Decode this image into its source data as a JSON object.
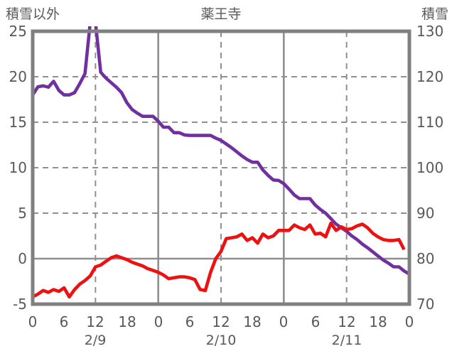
{
  "header": {
    "left_axis_title": "積雪以外",
    "title": "薬王寺",
    "right_axis_title": "積雪"
  },
  "axes": {
    "left_ticks": [
      "25",
      "20",
      "15",
      "10",
      "5",
      "0",
      "-5"
    ],
    "right_ticks": [
      "130",
      "120",
      "110",
      "100",
      "90",
      "80",
      "70"
    ],
    "x_ticks": [
      "0",
      "6",
      "12",
      "18",
      "0",
      "6",
      "12",
      "18",
      "0",
      "6",
      "12",
      "18",
      "0"
    ],
    "date_labels": [
      "2/9",
      "2/10",
      "2/11"
    ]
  },
  "colors": {
    "snow_line": "#7030a0",
    "other_line": "#ee1111",
    "frame": "#808080",
    "grid": "#8f8f8f",
    "text": "#595959"
  },
  "chart_data": {
    "type": "line",
    "title": "薬王寺",
    "x_unit": "hour",
    "x_hours_start": 0,
    "x_hours_end": 72,
    "x_tick_hours": [
      0,
      6,
      12,
      18,
      24,
      30,
      36,
      42,
      48,
      54,
      60,
      66,
      72
    ],
    "dates": [
      "2/9",
      "2/10",
      "2/11"
    ],
    "left_axis": {
      "label": "積雪以外",
      "range": [
        -5,
        25
      ],
      "grid_step": 5
    },
    "right_axis": {
      "label": "積雪",
      "range": [
        70,
        130
      ],
      "grid_step": 10
    },
    "series": [
      {
        "name": "積雪",
        "axis": "right",
        "color": "#7030a0",
        "values": [
          116,
          117.8,
          118,
          117.7,
          119,
          117,
          116,
          116,
          116.5,
          118.5,
          120.7,
          132,
          132,
          121,
          119.7,
          118.7,
          117.7,
          116.5,
          114.3,
          112.8,
          112,
          111.3,
          111.3,
          111.3,
          110.2,
          108.9,
          108.9,
          107.7,
          107.7,
          107.2,
          107.1,
          107.1,
          107.1,
          107.1,
          107.1,
          106.5,
          106,
          105.2,
          104.4,
          103.5,
          102.6,
          101.8,
          101.2,
          101.2,
          99.5,
          98.3,
          97.3,
          97.2,
          96.5,
          95.3,
          94,
          93.2,
          93.2,
          93.2,
          91.8,
          90.8,
          90,
          88.8,
          87.6,
          86.8,
          86,
          85,
          84.2,
          83.2,
          82.4,
          81.5,
          80.6,
          79.7,
          79,
          78.2,
          78.2,
          77.3,
          76.6
        ]
      },
      {
        "name": "積雪以外",
        "axis": "left",
        "color": "#ee1111",
        "values": [
          -4.2,
          -3.9,
          -3.5,
          -3.7,
          -3.4,
          -3.6,
          -3.2,
          -4.2,
          -3.4,
          -2.8,
          -2.4,
          -1.9,
          -0.9,
          -0.7,
          -0.3,
          0.1,
          0.3,
          0.1,
          -0.1,
          -0.4,
          -0.6,
          -0.8,
          -1.1,
          -1.3,
          -1.5,
          -1.8,
          -2.2,
          -2.1,
          -2.0,
          -2.0,
          -2.1,
          -2.3,
          -3.4,
          -3.5,
          -1.5,
          0.0,
          0.8,
          2.2,
          2.3,
          2.4,
          2.7,
          2.0,
          2.3,
          1.7,
          2.7,
          2.3,
          2.5,
          3.1,
          3.1,
          3.1,
          3.7,
          3.4,
          3.2,
          3.7,
          2.7,
          2.8,
          2.4,
          3.9,
          3.1,
          3.5,
          3.2,
          3.3,
          3.6,
          3.8,
          3.4,
          2.8,
          2.4,
          2.1,
          2.0,
          2.0,
          2.1,
          1.0
        ]
      }
    ],
    "note": "積雪 values of 132 represent an off-scale spike (>130) clipped at the plot top around 2/9 11:00-12:00"
  }
}
